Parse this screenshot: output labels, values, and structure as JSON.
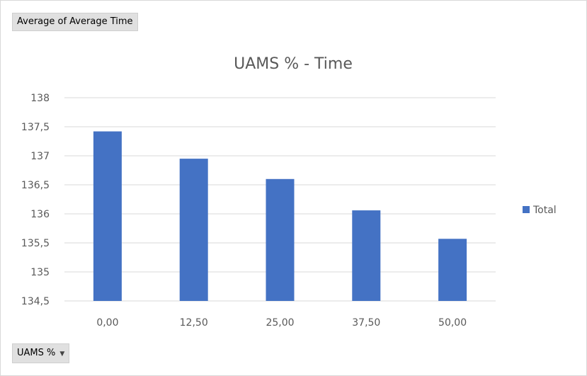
{
  "pivot_fields": {
    "value_field": "Average of Average Time",
    "axis_field": "UAMS %",
    "axis_field_dropdown_icon": "chevron-down-icon"
  },
  "chart_data": {
    "type": "bar",
    "title": "UAMS % - Time",
    "categories": [
      "0,00",
      "12,50",
      "25,00",
      "37,50",
      "50,00"
    ],
    "series": [
      {
        "name": "Total",
        "values": [
          137.42,
          136.95,
          136.6,
          136.06,
          135.57
        ],
        "color": "#4472c4"
      }
    ],
    "ylim": [
      134.5,
      138
    ],
    "yticks": [
      134.5,
      135,
      135.5,
      136,
      136.5,
      137,
      137.5,
      138
    ],
    "ytick_labels": [
      "134,5",
      "135",
      "135,5",
      "136",
      "136,5",
      "137",
      "137,5",
      "138"
    ],
    "xlabel": "",
    "ylabel": "",
    "grid": true,
    "legend": "right",
    "colors": {
      "bar": "#4472c4",
      "grid": "#d9d9d9",
      "text": "#595959"
    }
  }
}
